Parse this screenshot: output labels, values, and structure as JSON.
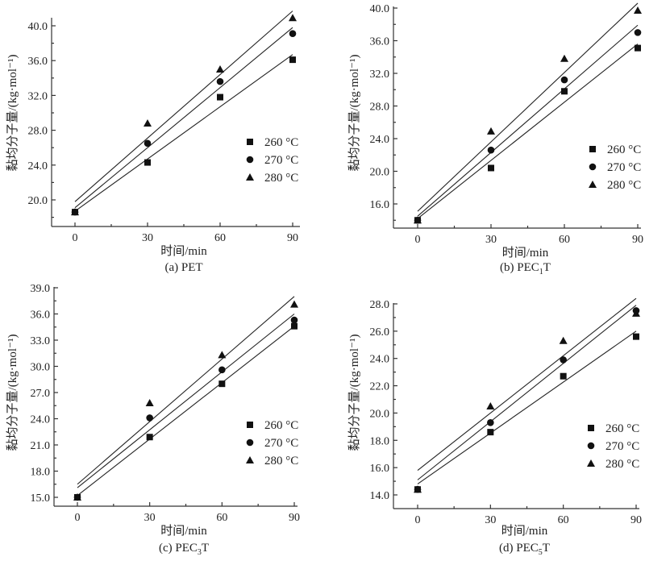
{
  "figure": {
    "legend_entries": [
      "260 °C",
      "270 °C",
      "280 °C"
    ],
    "marker_shapes": [
      "square",
      "circle",
      "triangle"
    ],
    "xlabel": "时间/min",
    "ylabel": "黏均分子量/(kg·mol⁻¹)"
  },
  "chart_data": [
    {
      "id": "a",
      "type": "scatter",
      "caption": "(a) PET",
      "caption_parts": {
        "prefix": "(a) PET",
        "sub": "",
        "suffix": ""
      },
      "xlabel": "时间/min",
      "ylabel": "黏均分子量/(kg·mol⁻¹)",
      "x": [
        0,
        30,
        60,
        90
      ],
      "xticks": [
        "0",
        "30",
        "60",
        "90"
      ],
      "yticks": [
        "20.0",
        "24.0",
        "28.0",
        "32.0",
        "36.0",
        "40.0"
      ],
      "ylim": [
        17.0,
        41.0
      ],
      "xlim": [
        -10,
        93
      ],
      "legend": "center-right",
      "series": [
        {
          "name": "260 °C",
          "marker": "square",
          "values": [
            18.6,
            24.3,
            31.8,
            36.1
          ],
          "fit": [
            18.7,
            36.7
          ]
        },
        {
          "name": "270 °C",
          "marker": "circle",
          "values": [
            18.6,
            26.5,
            33.6,
            39.1
          ],
          "fit": [
            19.1,
            39.8
          ]
        },
        {
          "name": "280 °C",
          "marker": "triangle",
          "values": [
            18.6,
            28.8,
            35.0,
            40.9
          ],
          "fit": [
            19.8,
            41.7
          ]
        }
      ]
    },
    {
      "id": "b",
      "type": "scatter",
      "caption": "(b) PEC1T",
      "caption_parts": {
        "prefix": "(b) PEC",
        "sub": "1",
        "suffix": "T"
      },
      "xlabel": "时间/min",
      "ylabel": "黏均分子量/(kg·mol⁻¹)",
      "x": [
        0,
        30,
        60,
        90
      ],
      "xticks": [
        "0",
        "30",
        "60",
        "90"
      ],
      "yticks": [
        "16.0",
        "20.0",
        "24.0",
        "28.0",
        "32.0",
        "36.0",
        "40.0"
      ],
      "ylim": [
        13.0,
        40.0
      ],
      "xlim": [
        -10,
        93
      ],
      "legend": "center-right",
      "series": [
        {
          "name": "260 °C",
          "marker": "square",
          "values": [
            14.0,
            20.4,
            29.8,
            35.1
          ],
          "fit": [
            14.2,
            35.6
          ]
        },
        {
          "name": "270 °C",
          "marker": "circle",
          "values": [
            14.0,
            22.6,
            31.2,
            37.0
          ],
          "fit": [
            14.5,
            37.9
          ]
        },
        {
          "name": "280 °C",
          "marker": "triangle",
          "values": [
            14.0,
            24.9,
            33.8,
            39.7
          ],
          "fit": [
            15.1,
            40.6
          ]
        }
      ]
    },
    {
      "id": "c",
      "type": "scatter",
      "caption": "(c) PEC3T",
      "caption_parts": {
        "prefix": "(c) PEC",
        "sub": "3",
        "suffix": "T"
      },
      "xlabel": "时间/min",
      "ylabel": "黏均分子量/(kg·mol⁻¹)",
      "x": [
        0,
        30,
        60,
        90
      ],
      "xticks": [
        "0",
        "30",
        "60",
        "90"
      ],
      "yticks": [
        "15.0",
        "18.0",
        "21.0",
        "24.0",
        "27.0",
        "30.0",
        "33.0",
        "36.0",
        "39.0"
      ],
      "ylim": [
        14.0,
        39.0
      ],
      "xlim": [
        -10,
        93
      ],
      "legend": "center-right",
      "series": [
        {
          "name": "260 °C",
          "marker": "square",
          "values": [
            15.0,
            21.9,
            28.0,
            34.6
          ],
          "fit": [
            15.2,
            34.6
          ]
        },
        {
          "name": "270 °C",
          "marker": "circle",
          "values": [
            15.0,
            24.1,
            29.6,
            35.3
          ],
          "fit": [
            16.1,
            36.0
          ]
        },
        {
          "name": "280 °C",
          "marker": "triangle",
          "values": [
            15.0,
            25.8,
            31.3,
            37.1
          ],
          "fit": [
            16.5,
            38.0
          ]
        }
      ]
    },
    {
      "id": "d",
      "type": "scatter",
      "caption": "(d) PEC5T",
      "caption_parts": {
        "prefix": "(d) PEC",
        "sub": "5",
        "suffix": "T"
      },
      "xlabel": "时间/min",
      "ylabel": "黏均分子量/(kg·mol⁻¹)",
      "x": [
        0,
        30,
        60,
        90
      ],
      "xticks": [
        "0",
        "30",
        "60",
        "90"
      ],
      "yticks": [
        "14.0",
        "16.0",
        "18.0",
        "20.0",
        "22.0",
        "24.0",
        "26.0",
        "28.0"
      ],
      "ylim": [
        13.0,
        28.0
      ],
      "xlim": [
        -10,
        93
      ],
      "legend": "center-right",
      "series": [
        {
          "name": "260 °C",
          "marker": "square",
          "values": [
            14.4,
            18.6,
            22.7,
            25.6
          ],
          "fit": [
            14.8,
            26.0
          ]
        },
        {
          "name": "270 °C",
          "marker": "circle",
          "values": [
            14.4,
            19.3,
            23.9,
            27.5
          ],
          "fit": [
            15.1,
            27.9
          ]
        },
        {
          "name": "280 °C",
          "marker": "triangle",
          "values": [
            14.4,
            20.5,
            25.3,
            27.3
          ],
          "fit": [
            15.8,
            28.4
          ]
        }
      ]
    }
  ]
}
